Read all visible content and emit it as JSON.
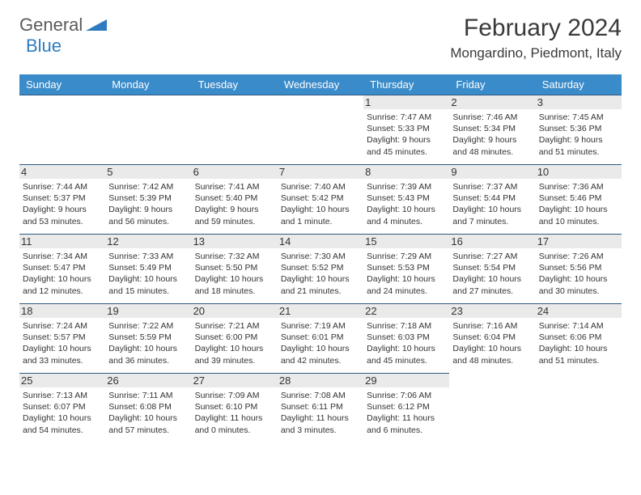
{
  "logo": {
    "text1": "General",
    "text2": "Blue"
  },
  "title": "February 2024",
  "location": "Mongardino, Piedmont, Italy",
  "colors": {
    "header_bg": "#3a8bc9",
    "header_text": "#ffffff",
    "border": "#2f5a80",
    "daynum_bg": "#eaeaea",
    "logo_gray": "#5a5a5a",
    "logo_blue": "#2e7cc0"
  },
  "daynames": [
    "Sunday",
    "Monday",
    "Tuesday",
    "Wednesday",
    "Thursday",
    "Friday",
    "Saturday"
  ],
  "leading_blanks": 4,
  "days": [
    {
      "n": "1",
      "sr": "7:47 AM",
      "ss": "5:33 PM",
      "dl": "9 hours and 45 minutes."
    },
    {
      "n": "2",
      "sr": "7:46 AM",
      "ss": "5:34 PM",
      "dl": "9 hours and 48 minutes."
    },
    {
      "n": "3",
      "sr": "7:45 AM",
      "ss": "5:36 PM",
      "dl": "9 hours and 51 minutes."
    },
    {
      "n": "4",
      "sr": "7:44 AM",
      "ss": "5:37 PM",
      "dl": "9 hours and 53 minutes."
    },
    {
      "n": "5",
      "sr": "7:42 AM",
      "ss": "5:39 PM",
      "dl": "9 hours and 56 minutes."
    },
    {
      "n": "6",
      "sr": "7:41 AM",
      "ss": "5:40 PM",
      "dl": "9 hours and 59 minutes."
    },
    {
      "n": "7",
      "sr": "7:40 AM",
      "ss": "5:42 PM",
      "dl": "10 hours and 1 minute."
    },
    {
      "n": "8",
      "sr": "7:39 AM",
      "ss": "5:43 PM",
      "dl": "10 hours and 4 minutes."
    },
    {
      "n": "9",
      "sr": "7:37 AM",
      "ss": "5:44 PM",
      "dl": "10 hours and 7 minutes."
    },
    {
      "n": "10",
      "sr": "7:36 AM",
      "ss": "5:46 PM",
      "dl": "10 hours and 10 minutes."
    },
    {
      "n": "11",
      "sr": "7:34 AM",
      "ss": "5:47 PM",
      "dl": "10 hours and 12 minutes."
    },
    {
      "n": "12",
      "sr": "7:33 AM",
      "ss": "5:49 PM",
      "dl": "10 hours and 15 minutes."
    },
    {
      "n": "13",
      "sr": "7:32 AM",
      "ss": "5:50 PM",
      "dl": "10 hours and 18 minutes."
    },
    {
      "n": "14",
      "sr": "7:30 AM",
      "ss": "5:52 PM",
      "dl": "10 hours and 21 minutes."
    },
    {
      "n": "15",
      "sr": "7:29 AM",
      "ss": "5:53 PM",
      "dl": "10 hours and 24 minutes."
    },
    {
      "n": "16",
      "sr": "7:27 AM",
      "ss": "5:54 PM",
      "dl": "10 hours and 27 minutes."
    },
    {
      "n": "17",
      "sr": "7:26 AM",
      "ss": "5:56 PM",
      "dl": "10 hours and 30 minutes."
    },
    {
      "n": "18",
      "sr": "7:24 AM",
      "ss": "5:57 PM",
      "dl": "10 hours and 33 minutes."
    },
    {
      "n": "19",
      "sr": "7:22 AM",
      "ss": "5:59 PM",
      "dl": "10 hours and 36 minutes."
    },
    {
      "n": "20",
      "sr": "7:21 AM",
      "ss": "6:00 PM",
      "dl": "10 hours and 39 minutes."
    },
    {
      "n": "21",
      "sr": "7:19 AM",
      "ss": "6:01 PM",
      "dl": "10 hours and 42 minutes."
    },
    {
      "n": "22",
      "sr": "7:18 AM",
      "ss": "6:03 PM",
      "dl": "10 hours and 45 minutes."
    },
    {
      "n": "23",
      "sr": "7:16 AM",
      "ss": "6:04 PM",
      "dl": "10 hours and 48 minutes."
    },
    {
      "n": "24",
      "sr": "7:14 AM",
      "ss": "6:06 PM",
      "dl": "10 hours and 51 minutes."
    },
    {
      "n": "25",
      "sr": "7:13 AM",
      "ss": "6:07 PM",
      "dl": "10 hours and 54 minutes."
    },
    {
      "n": "26",
      "sr": "7:11 AM",
      "ss": "6:08 PM",
      "dl": "10 hours and 57 minutes."
    },
    {
      "n": "27",
      "sr": "7:09 AM",
      "ss": "6:10 PM",
      "dl": "11 hours and 0 minutes."
    },
    {
      "n": "28",
      "sr": "7:08 AM",
      "ss": "6:11 PM",
      "dl": "11 hours and 3 minutes."
    },
    {
      "n": "29",
      "sr": "7:06 AM",
      "ss": "6:12 PM",
      "dl": "11 hours and 6 minutes."
    }
  ],
  "labels": {
    "sunrise": "Sunrise: ",
    "sunset": "Sunset: ",
    "daylight": "Daylight: "
  }
}
